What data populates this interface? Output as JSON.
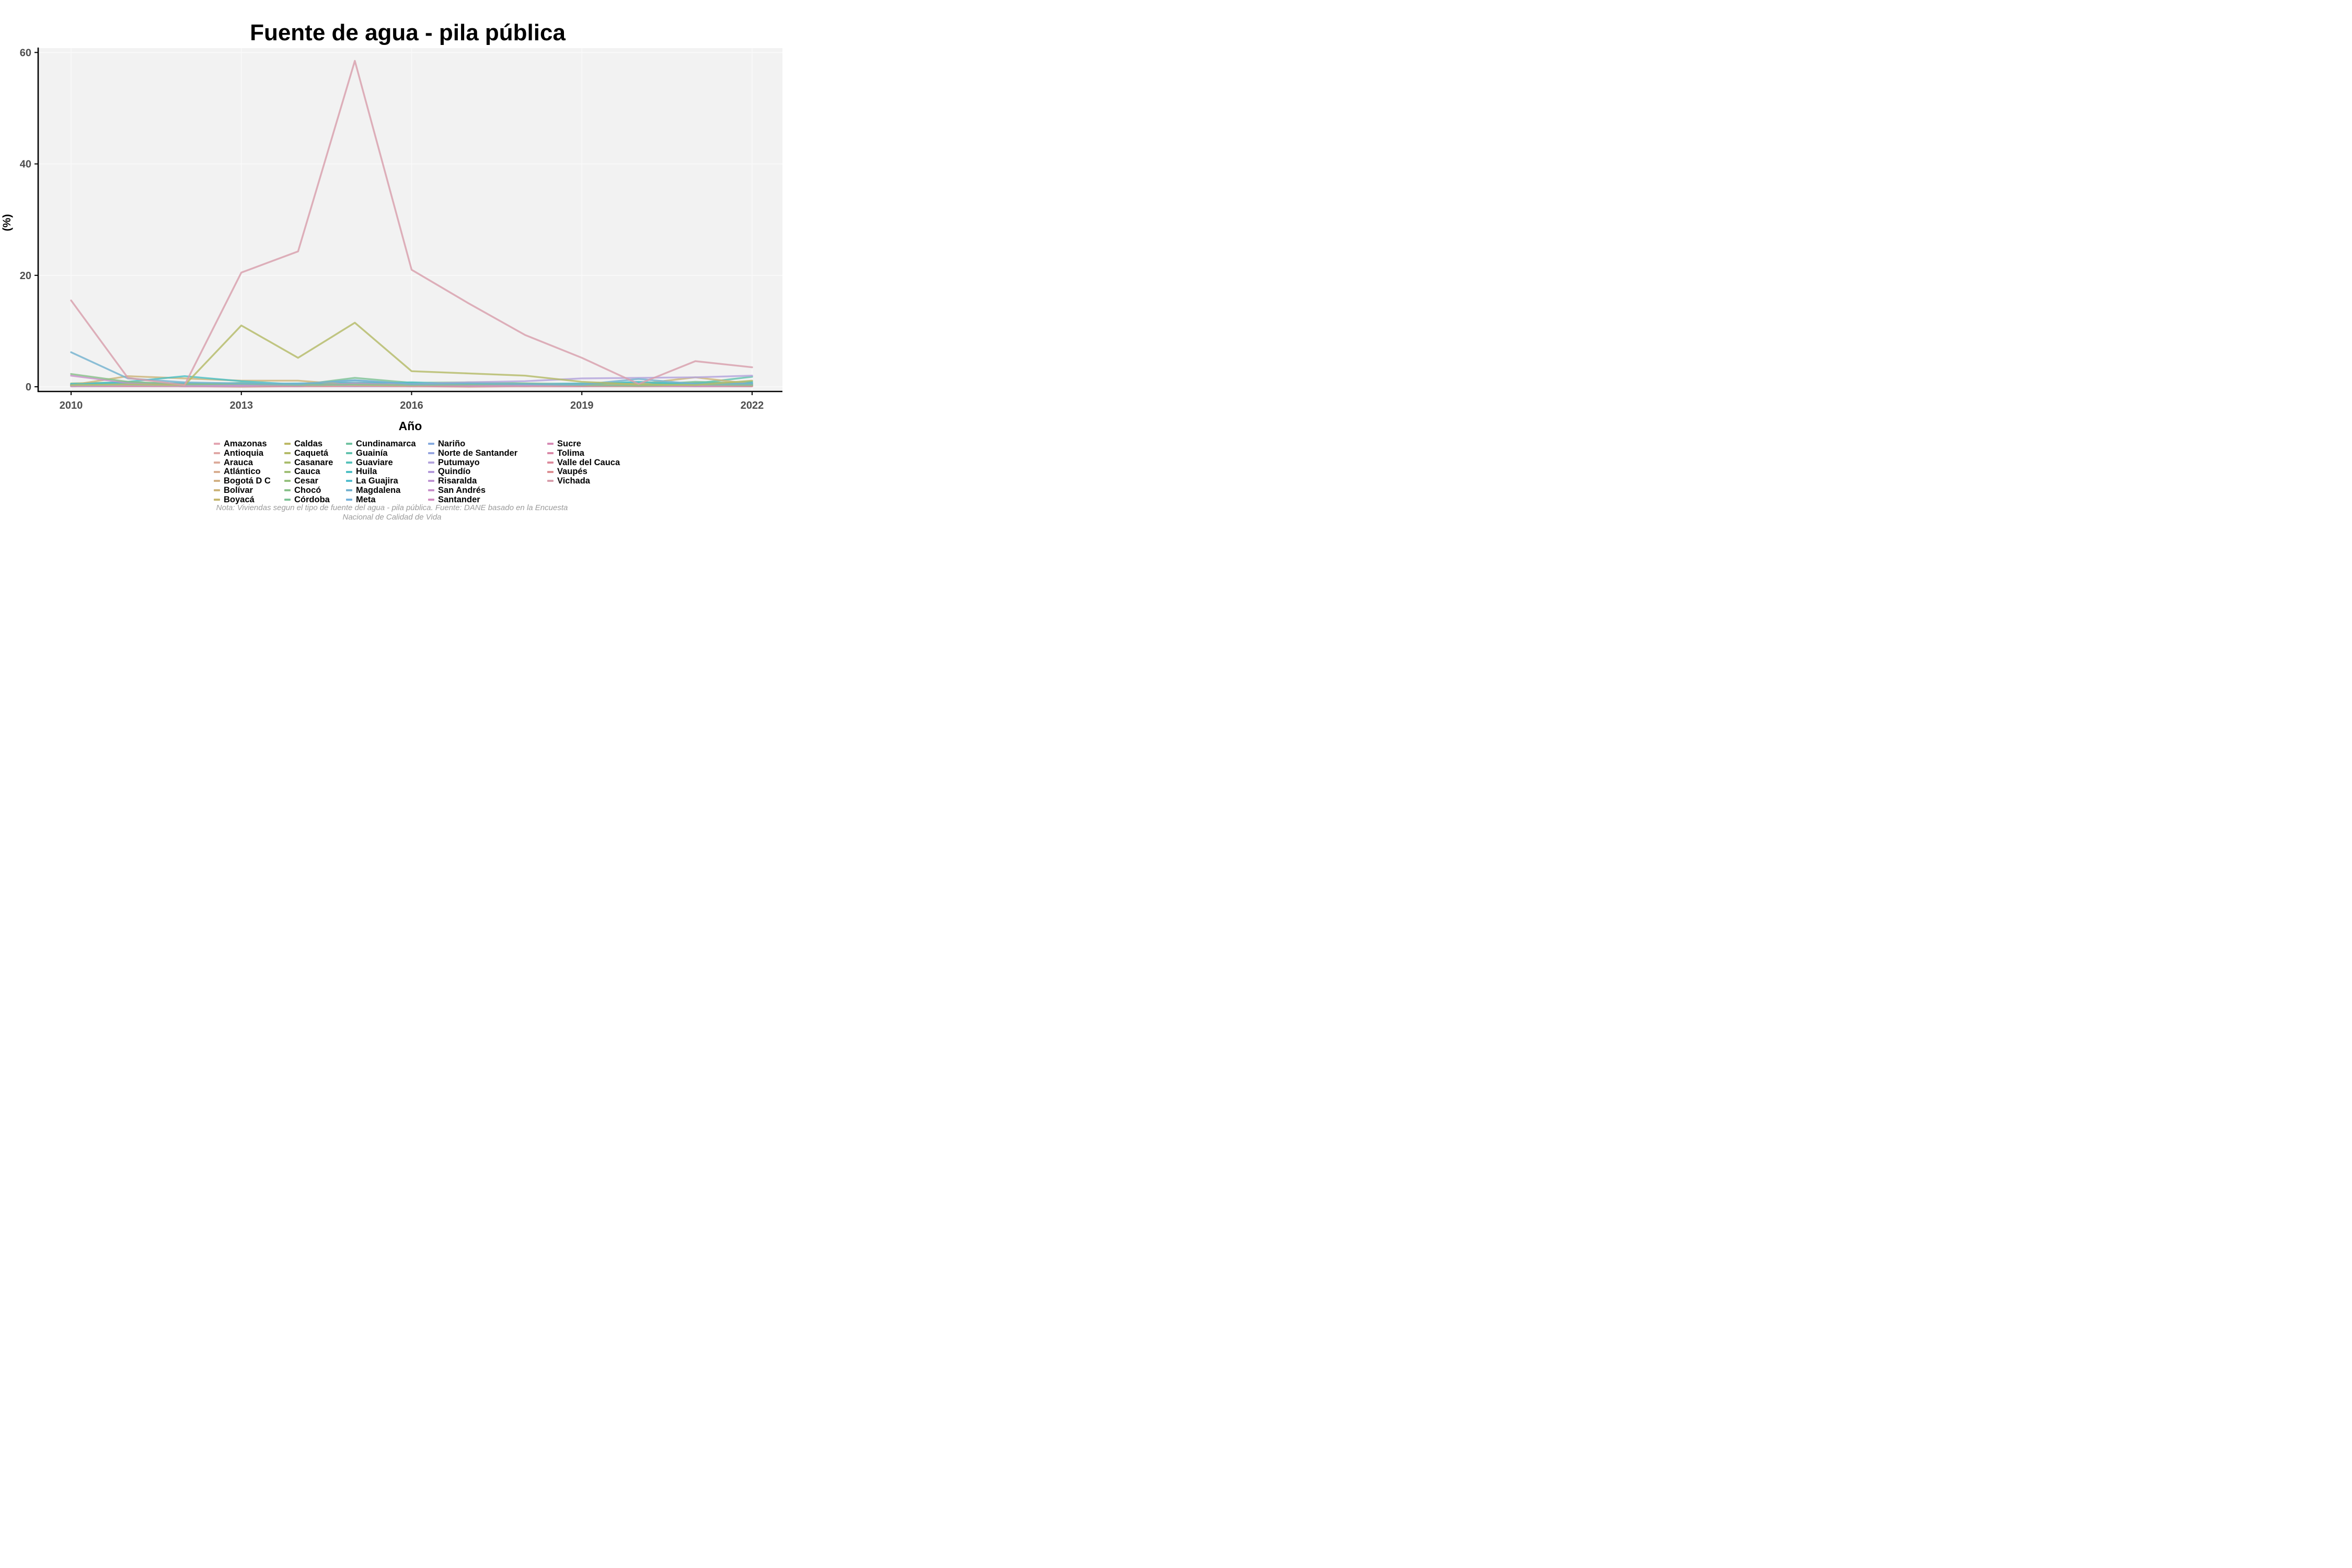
{
  "title": "Fuente de agua - pila pública",
  "caption": {
    "line1": "Nota: Viviendas segun el tipo de fuente del agua - pila pública. Fuente: DANE basado en la Encuesta",
    "line2": "Nacional de Calidad de Vida"
  },
  "chart_data": {
    "type": "line",
    "title": "Fuente de agua - pila pública",
    "xlabel": "Año",
    "ylabel": "(%)",
    "x": [
      2010,
      2011,
      2012,
      2013,
      2014,
      2015,
      2016,
      2017,
      2018,
      2019,
      2020,
      2021,
      2022
    ],
    "x_ticks": [
      2010,
      2013,
      2016,
      2019,
      2022
    ],
    "y_ticks": [
      0,
      20,
      40,
      60
    ],
    "ylim": [
      0,
      62
    ],
    "grid": "faint white major gridlines on light gray panel",
    "legend_position": "bottom",
    "panel_bg": "#f2f2f2",
    "axis_color": "#000000",
    "tick_label_color": "#4d4d4d",
    "series": [
      {
        "name": "Amazonas",
        "color": "#e3a5b1",
        "values": [
          0.2,
          0.2,
          0.1,
          0.1,
          0.1,
          0.2,
          0.1,
          0.1,
          0.1,
          0.2,
          0.1,
          0.1,
          0.2
        ]
      },
      {
        "name": "Antioquia",
        "color": "#e0a8a6",
        "values": [
          0.1,
          0.2,
          0.1,
          0.1,
          0.1,
          0.1,
          0.2,
          0.1,
          0.1,
          0.1,
          0.1,
          0.1,
          0.1
        ]
      },
      {
        "name": "Arauca",
        "color": "#dcab9b",
        "values": [
          0.3,
          0.4,
          0.2,
          0.3,
          0.2,
          0.3,
          0.2,
          0.3,
          0.2,
          0.3,
          0.4,
          0.3,
          0.3
        ]
      },
      {
        "name": "Atlántico",
        "color": "#d8ae90",
        "values": [
          0.2,
          0.3,
          0.2,
          0.2,
          0.3,
          0.2,
          0.2,
          0.2,
          0.1,
          0.2,
          0.2,
          0.2,
          0.2
        ]
      },
      {
        "name": "Bogotá D C",
        "color": "#d2b185",
        "values": [
          0.1,
          0.1,
          0.1,
          0.0,
          0.1,
          0.1,
          0.1,
          0.0,
          0.1,
          0.1,
          0.1,
          0.1,
          0.1
        ]
      },
      {
        "name": "Bolívar",
        "color": "#ccb47a",
        "values": [
          0.3,
          1.9,
          1.5,
          1.1,
          1.1,
          0.3,
          0.3,
          0.4,
          0.3,
          0.5,
          0.5,
          1.7,
          0.5
        ]
      },
      {
        "name": "Boyacá",
        "color": "#c5b76f",
        "values": [
          0.4,
          0.5,
          0.3,
          0.4,
          0.3,
          0.4,
          0.3,
          0.3,
          0.4,
          0.3,
          0.4,
          0.4,
          0.3
        ]
      },
      {
        "name": "Caldas",
        "color": "#bdb966",
        "values": [
          0.2,
          0.3,
          0.3,
          0.2,
          0.2,
          0.3,
          0.2,
          0.2,
          0.3,
          0.2,
          0.2,
          0.3,
          0.2
        ]
      },
      {
        "name": "Caquetá",
        "color": "#b4bb68",
        "values": [
          0.3,
          0.4,
          0.3,
          11.0,
          5.2,
          11.5,
          2.8,
          2.4,
          2.0,
          0.9,
          0.4,
          0.3,
          1.1
        ]
      },
      {
        "name": "Casanare",
        "color": "#aabd6d",
        "values": [
          0.4,
          0.6,
          0.4,
          0.5,
          0.4,
          0.4,
          0.5,
          0.4,
          0.4,
          0.5,
          0.4,
          0.5,
          0.4
        ]
      },
      {
        "name": "Cauca",
        "color": "#a0bf75",
        "values": [
          0.5,
          0.6,
          0.5,
          0.6,
          0.4,
          0.5,
          0.6,
          0.5,
          0.4,
          0.5,
          0.5,
          0.6,
          0.5
        ]
      },
      {
        "name": "Cesar",
        "color": "#95c07e",
        "values": [
          0.6,
          0.8,
          0.5,
          0.6,
          0.5,
          0.7,
          0.6,
          0.5,
          0.6,
          0.5,
          0.6,
          0.7,
          0.6
        ]
      },
      {
        "name": "Chocó",
        "color": "#89c18a",
        "values": [
          2.3,
          0.9,
          0.4,
          0.5,
          0.3,
          0.4,
          0.3,
          0.4,
          0.5,
          0.3,
          0.2,
          0.4,
          0.3
        ]
      },
      {
        "name": "Córdoba",
        "color": "#7dc295",
        "values": [
          0.3,
          0.5,
          0.4,
          0.7,
          0.3,
          1.6,
          0.7,
          0.8,
          0.6,
          0.4,
          0.3,
          0.9,
          0.6
        ]
      },
      {
        "name": "Cundinamarca",
        "color": "#70c2a1",
        "values": [
          0.4,
          0.5,
          0.6,
          0.5,
          0.4,
          0.5,
          0.4,
          0.5,
          0.4,
          0.4,
          0.5,
          0.4,
          0.5
        ]
      },
      {
        "name": "Guainía",
        "color": "#62c2ad",
        "values": [
          0.3,
          0.4,
          0.3,
          0.4,
          0.3,
          0.4,
          0.5,
          0.4,
          0.3,
          0.4,
          0.5,
          0.6,
          1.8
        ]
      },
      {
        "name": "Guaviare",
        "color": "#55c1b9",
        "values": [
          0.4,
          0.5,
          0.6,
          0.5,
          0.4,
          0.6,
          0.5,
          0.4,
          0.5,
          0.4,
          0.6,
          0.5,
          0.9
        ]
      },
      {
        "name": "Huila",
        "color": "#4dc0c4",
        "values": [
          0.4,
          0.9,
          1.9,
          1.0,
          0.4,
          0.5,
          0.8,
          0.5,
          0.4,
          0.5,
          0.9,
          0.4,
          0.5
        ]
      },
      {
        "name": "La Guajira",
        "color": "#52bdce",
        "values": [
          0.5,
          0.7,
          0.6,
          0.5,
          0.6,
          0.7,
          0.5,
          0.6,
          0.5,
          0.6,
          0.7,
          0.6,
          0.8
        ]
      },
      {
        "name": "Magdalena",
        "color": "#74b2cf",
        "values": [
          6.2,
          1.5,
          0.8,
          0.6,
          0.5,
          1.2,
          0.5,
          0.6,
          0.5,
          0.4,
          1.4,
          0.5,
          0.6
        ]
      },
      {
        "name": "Meta",
        "color": "#75b1da",
        "values": [
          0.4,
          0.6,
          0.5,
          0.4,
          0.5,
          1.1,
          0.5,
          0.4,
          0.5,
          0.4,
          0.5,
          0.6,
          0.5
        ]
      },
      {
        "name": "Nariño",
        "color": "#86abdf",
        "values": [
          0.3,
          0.4,
          0.3,
          0.4,
          0.3,
          0.4,
          0.3,
          0.4,
          0.3,
          0.4,
          0.3,
          0.4,
          0.4
        ]
      },
      {
        "name": "Norte de Santander",
        "color": "#96a5e0",
        "values": [
          0.2,
          0.3,
          0.2,
          0.3,
          0.2,
          0.3,
          0.2,
          0.2,
          0.3,
          0.2,
          0.3,
          0.2,
          0.3
        ]
      },
      {
        "name": "Putumayo",
        "color": "#b3a3dc",
        "values": [
          0.2,
          0.3,
          0.2,
          0.2,
          0.3,
          0.4,
          0.5,
          0.8,
          1.0,
          1.5,
          1.6,
          1.7,
          2.0
        ]
      },
      {
        "name": "Quindío",
        "color": "#b399da",
        "values": [
          0.1,
          0.2,
          0.1,
          0.1,
          0.2,
          0.1,
          0.1,
          0.2,
          0.1,
          0.1,
          0.2,
          0.1,
          0.1
        ]
      },
      {
        "name": "Risaralda",
        "color": "#bf94d3",
        "values": [
          0.2,
          0.2,
          0.1,
          0.2,
          0.1,
          0.2,
          0.1,
          0.2,
          0.1,
          0.2,
          0.2,
          0.2,
          0.2
        ]
      },
      {
        "name": "San Andrés",
        "color": "#c890cb",
        "values": [
          2.0,
          0.7,
          0.3,
          0.3,
          0.2,
          0.6,
          0.3,
          0.2,
          0.2,
          0.3,
          0.2,
          0.2,
          0.3
        ]
      },
      {
        "name": "Santander",
        "color": "#d08cc0",
        "values": [
          0.1,
          0.1,
          0.1,
          0.1,
          0.1,
          0.1,
          0.1,
          0.1,
          0.1,
          0.1,
          0.1,
          0.1,
          0.1
        ]
      },
      {
        "name": "Sucre",
        "color": "#d68ab4",
        "values": [
          0.2,
          0.3,
          0.2,
          0.2,
          0.3,
          0.2,
          0.2,
          0.2,
          0.3,
          0.2,
          0.2,
          0.3,
          0.3
        ]
      },
      {
        "name": "Tolima",
        "color": "#da89a8",
        "values": [
          0.1,
          0.2,
          0.1,
          0.1,
          0.1,
          0.2,
          0.1,
          0.1,
          0.1,
          0.1,
          0.2,
          0.1,
          0.1
        ]
      },
      {
        "name": "Valle del Cauca",
        "color": "#dc8a9c",
        "values": [
          0.2,
          0.2,
          0.1,
          0.2,
          0.1,
          0.2,
          0.1,
          0.2,
          0.1,
          0.2,
          0.1,
          0.2,
          0.2
        ]
      },
      {
        "name": "Vaupés",
        "color": "#dc8e92",
        "values": [
          0.3,
          0.2,
          0.2,
          0.3,
          0.2,
          0.3,
          0.2,
          0.2,
          0.3,
          0.2,
          0.3,
          0.3,
          0.2
        ]
      },
      {
        "name": "Vichada",
        "color": "#d89fac",
        "values": [
          15.5,
          1.6,
          0.3,
          20.5,
          24.3,
          58.5,
          21.0,
          15.0,
          9.3,
          5.2,
          0.5,
          4.6,
          3.5
        ]
      }
    ]
  },
  "legend_layout": {
    "columns_of": [
      7,
      7,
      7,
      7,
      5
    ]
  }
}
